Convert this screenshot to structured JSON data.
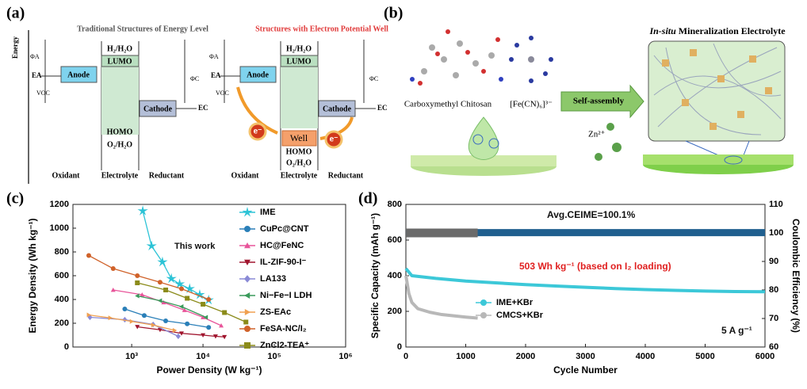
{
  "panel_labels": [
    "(a)",
    "(b)",
    "(c)",
    "(d)"
  ],
  "panel_a": {
    "axis_label": "Energy",
    "diagrams": [
      {
        "title": "Traditional Structures of Energy Level",
        "top_level": "H₂/H₂O",
        "lumo": "LUMO",
        "homo": "HOMO",
        "bottom_level": "O₂/H₂O",
        "anode": "Anode",
        "cathode": "Cathode",
        "phi_a": "ΦA",
        "phi_c": "ΦC",
        "e_a": "EA",
        "e_c": "EC",
        "voc": "VOC",
        "oxidant": "Oxidant",
        "electrolyte": "Electrolyte",
        "reductant": "Reductant"
      },
      {
        "title": "Structures with Electron Potential Well",
        "top_level": "H₂/H₂O",
        "lumo": "LUMO",
        "homo": "HOMO",
        "bottom_level": "O₂/H₂O",
        "anode": "Anode",
        "cathode": "Cathode",
        "phi_a": "ΦA",
        "phi_c": "ΦC",
        "e_a": "EA",
        "e_c": "EC",
        "voc": "VOC",
        "oxidant": "Oxidant",
        "electrolyte": "Electrolyte",
        "reductant": "Reductant",
        "well": "Well",
        "electron": "e⁻"
      }
    ]
  },
  "panel_b": {
    "chitosan": "Carboxymethyl Chitosan",
    "ferricyanide": "[Fe(CN)₆]³⁻",
    "arrow": "Self-assembly",
    "zinc": "Zn²⁺",
    "title_italic": "In-situ",
    "title": "Mineralization Electrolyte"
  },
  "chart_data": [
    {
      "type": "line",
      "x_label": "Power Density (W kg⁻¹)",
      "y_label": "Energy Density (Wh kg⁻¹)",
      "xlog": true,
      "xlim": [
        150,
        1000000
      ],
      "xticks": [
        {
          "value": 1000,
          "label": "10³"
        },
        {
          "value": 10000,
          "label": "10⁴"
        },
        {
          "value": 100000,
          "label": "10⁵"
        },
        {
          "value": 1000000,
          "label": "10⁶"
        }
      ],
      "ylim": [
        0,
        1200
      ],
      "yticks": [
        0,
        200,
        400,
        600,
        800,
        1000,
        1200
      ],
      "legend": "upper right",
      "annotations": [
        "This work"
      ],
      "series": [
        {
          "name": "IME",
          "color": "#2cc3d6",
          "marker": "star",
          "x": [
            1430,
            1900,
            2700,
            3600,
            4700,
            6500,
            9000,
            12000
          ],
          "values": [
            1145,
            850,
            715,
            575,
            530,
            490,
            440,
            395
          ]
        },
        {
          "name": "CuPc@CNT",
          "color": "#2a7fb8",
          "marker": "circle",
          "x": [
            800,
            1500,
            3000,
            6000,
            12000
          ],
          "values": [
            320,
            265,
            220,
            195,
            165
          ]
        },
        {
          "name": "HC@FeNC",
          "color": "#e8559a",
          "marker": "triangle",
          "x": [
            550,
            1400,
            2800,
            5500,
            10000,
            18000
          ],
          "values": [
            480,
            440,
            375,
            310,
            250,
            180
          ]
        },
        {
          "name": "IL-ZIF-90-I⁻",
          "color": "#a0152e",
          "marker": "down",
          "x": [
            1200,
            2500,
            5000,
            10000,
            15000,
            20000
          ],
          "values": [
            170,
            145,
            115,
            100,
            90,
            85
          ]
        },
        {
          "name": "LA133",
          "color": "#8a8ad6",
          "marker": "diamond",
          "x": [
            260,
            800,
            2000,
            4500
          ],
          "values": [
            250,
            230,
            190,
            90
          ]
        },
        {
          "name": "Ni−Fe−I LDH",
          "color": "#3a9a5b",
          "marker": "left",
          "x": [
            1200,
            2500,
            5000,
            11000
          ],
          "values": [
            430,
            390,
            340,
            250
          ]
        },
        {
          "name": "ZS-EAc",
          "color": "#f0a050",
          "marker": "right",
          "x": [
            250,
            500,
            1000,
            2000,
            4000
          ],
          "values": [
            270,
            245,
            215,
            185,
            140
          ]
        },
        {
          "name": "FeSA-NC/I₂",
          "color": "#d0622a",
          "marker": "circle",
          "x": [
            250,
            550,
            1200,
            2500,
            5000,
            12000
          ],
          "values": [
            770,
            660,
            600,
            545,
            490,
            400
          ]
        },
        {
          "name": "ZnCl2-TEA⁺",
          "color": "#8b8b1a",
          "marker": "square",
          "x": [
            1200,
            3000,
            6000,
            10000,
            20000,
            40000
          ],
          "values": [
            540,
            480,
            410,
            360,
            290,
            210
          ]
        }
      ]
    },
    {
      "type": "line",
      "x_label": "Cycle Number",
      "y_label": "Specific Capacity (mAh g⁻¹)",
      "y2_label": "Coulombic Efficiency (%)",
      "xlim": [
        0,
        6000
      ],
      "xticks": [
        0,
        1000,
        2000,
        3000,
        4000,
        5000,
        6000
      ],
      "ylim": [
        0,
        800
      ],
      "yticks": [
        0,
        200,
        400,
        600,
        800
      ],
      "y2lim": [
        60,
        110
      ],
      "y2ticks": [
        60,
        70,
        80,
        90,
        100,
        110
      ],
      "legend": "center left",
      "annotations": [
        "Avg.CEIME=100.1%",
        "503 Wh kg⁻¹ (based on I₂ loading)",
        "5 A g⁻¹"
      ],
      "series": [
        {
          "axis": "y2",
          "color": "#1f5f8f",
          "width": 9,
          "x": [
            1,
            500,
            1000,
            1500,
            2000,
            2500,
            3000,
            3500,
            4000,
            4500,
            5000,
            5500,
            6000
          ],
          "values": [
            100.1,
            100.1,
            100.1,
            100.1,
            100.1,
            100.1,
            100.1,
            100.1,
            100.1,
            100.1,
            100.1,
            100.1,
            100.1
          ]
        },
        {
          "axis": "y2",
          "color": "#6a6a6a",
          "width": 11,
          "x": [
            1,
            200,
            400,
            600,
            800,
            1000,
            1200
          ],
          "values": [
            100,
            100,
            100,
            100,
            100,
            100,
            100
          ]
        },
        {
          "name": "IME+KBr",
          "color": "#3cc8d8",
          "width": 4,
          "x": [
            1,
            100,
            500,
            1000,
            1500,
            2000,
            2500,
            3000,
            3500,
            4000,
            4500,
            5000,
            5500,
            6000
          ],
          "values": [
            440,
            400,
            385,
            370,
            360,
            350,
            342,
            335,
            328,
            322,
            318,
            314,
            311,
            310
          ]
        },
        {
          "name": "CMCS+KBr",
          "color": "#b8b8b8",
          "width": 4,
          "x": [
            1,
            50,
            100,
            200,
            400,
            600,
            800,
            1000,
            1200
          ],
          "values": [
            400,
            300,
            250,
            215,
            195,
            182,
            175,
            168,
            162
          ]
        }
      ]
    }
  ]
}
